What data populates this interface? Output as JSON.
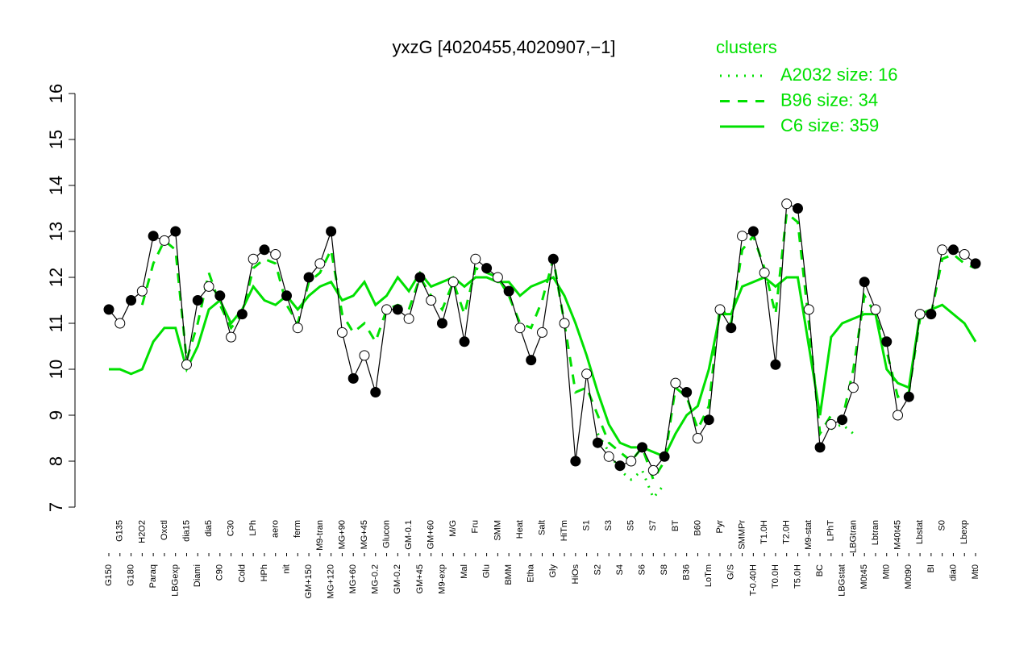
{
  "chart_data": {
    "type": "line",
    "title": "yxzG [4020455,4020907,−1]",
    "legend_title": "clusters",
    "legend_position": "top-right",
    "point_line_color": "#000000",
    "marker_colors": [
      "#000000",
      "#ffffff"
    ],
    "categories": [
      "G150",
      "G135",
      "G180",
      "H2O2",
      "Paraq",
      "Oxctl",
      "LBGexp",
      "dia15",
      "Diami",
      "dia5",
      "C90",
      "C30",
      "Cold",
      "LPh",
      "HPh",
      "aero",
      "nit",
      "ferm",
      "GM+150",
      "M9-tran",
      "MG+120",
      "MG+90",
      "MG+60",
      "MG+45",
      "MG-0.2",
      "Glucon",
      "GM-0.2",
      "GM-0.1",
      "GM+45",
      "GM+60",
      "M9-exp",
      "M/G",
      "Mal",
      "Fru",
      "Glu",
      "SMM",
      "BMM",
      "Heat",
      "Etha",
      "Salt",
      "Gly",
      "HiTm",
      "HiOs",
      "S1",
      "S2",
      "S3",
      "S4",
      "S5",
      "S6",
      "S7",
      "S8",
      "BT",
      "B36",
      "B60",
      "LoTm",
      "Pyr",
      "G/S",
      "SMMPr",
      "T-0.40H",
      "T1.0H",
      "T0.0H",
      "T2.0H",
      "T5.0H",
      "M9-stat",
      "BC",
      "LPhT",
      "LBGstat",
      "LBGtran",
      "M0t45",
      "Lbtran",
      "Mt0",
      "M40t45",
      "M0t90",
      "Lbstat",
      "BI",
      "S0",
      "dia0",
      "Lbexp",
      "Mt0"
    ],
    "values": [
      11.3,
      11.0,
      11.5,
      11.7,
      12.9,
      12.8,
      13.0,
      10.1,
      11.5,
      11.8,
      11.6,
      10.7,
      11.2,
      12.4,
      12.6,
      12.5,
      11.6,
      10.9,
      12.0,
      12.3,
      13.0,
      10.8,
      9.8,
      10.3,
      9.5,
      11.3,
      11.3,
      11.1,
      12.0,
      11.5,
      11.0,
      11.9,
      10.6,
      12.4,
      12.2,
      12.0,
      11.7,
      10.9,
      10.2,
      10.8,
      12.4,
      11.0,
      8.0,
      9.9,
      8.4,
      8.1,
      7.9,
      8.0,
      8.3,
      7.8,
      8.1,
      9.7,
      9.5,
      8.5,
      8.9,
      11.3,
      10.9,
      12.9,
      13.0,
      12.1,
      10.1,
      13.6,
      13.5,
      11.3,
      8.3,
      8.8,
      8.9,
      9.6,
      11.9,
      11.3,
      10.6,
      9.0,
      9.4,
      11.2,
      11.2,
      12.6,
      12.6,
      12.5,
      12.3
    ],
    "series": [
      {
        "name": "A2032 size: 16",
        "color": "#00e000",
        "style": "dotted",
        "values": [
          null,
          null,
          null,
          null,
          null,
          null,
          null,
          null,
          null,
          null,
          null,
          null,
          null,
          null,
          null,
          null,
          null,
          null,
          null,
          null,
          null,
          null,
          null,
          null,
          null,
          null,
          null,
          null,
          null,
          null,
          null,
          null,
          null,
          null,
          null,
          null,
          null,
          null,
          null,
          null,
          null,
          null,
          null,
          null,
          8.6,
          8.2,
          7.8,
          7.6,
          7.8,
          7.2,
          7.5,
          null,
          null,
          null,
          null,
          null,
          null,
          null,
          null,
          null,
          null,
          null,
          null,
          null,
          null,
          8.7,
          8.8,
          8.6,
          null,
          null,
          null,
          null,
          null,
          null,
          null,
          null,
          null,
          null,
          null
        ]
      },
      {
        "name": "B96 size: 34",
        "color": "#00e000",
        "style": "dashed",
        "values": [
          null,
          10.9,
          null,
          11.4,
          12.3,
          12.8,
          12.6,
          10.2,
          11.0,
          12.1,
          11.4,
          10.9,
          11.2,
          12.2,
          12.4,
          12.3,
          11.4,
          11.0,
          11.9,
          12.1,
          12.6,
          11.2,
          10.8,
          11.0,
          10.6,
          11.3,
          11.4,
          11.3,
          12.0,
          11.6,
          11.3,
          11.9,
          11.2,
          12.2,
          12.1,
          12.0,
          11.6,
          11.0,
          10.9,
          11.5,
          12.4,
          11.0,
          9.5,
          9.6,
          9.0,
          8.4,
          8.2,
          8.0,
          8.3,
          7.6,
          8.0,
          9.6,
          9.4,
          8.7,
          9.2,
          11.4,
          11.0,
          12.6,
          12.9,
          12.2,
          11.2,
          13.4,
          13.2,
          11.0,
          8.6,
          9.0,
          8.9,
          10.0,
          11.6,
          11.2,
          10.4,
          9.4,
          9.5,
          11.1,
          11.2,
          12.4,
          12.5,
          12.3,
          12.2
        ]
      },
      {
        "name": "C6 size: 359",
        "color": "#00e000",
        "style": "solid",
        "values": [
          10.0,
          10.0,
          9.9,
          10.0,
          10.6,
          10.9,
          10.9,
          10.0,
          10.5,
          11.3,
          11.5,
          11.0,
          11.3,
          11.8,
          11.5,
          11.4,
          11.6,
          11.3,
          11.6,
          11.8,
          11.9,
          11.5,
          11.6,
          11.9,
          11.4,
          11.6,
          12.0,
          11.7,
          12.1,
          11.8,
          11.9,
          12.0,
          11.8,
          12.0,
          12.0,
          11.9,
          11.9,
          11.6,
          11.8,
          11.9,
          12.0,
          11.6,
          11.0,
          10.3,
          9.5,
          8.8,
          8.4,
          8.3,
          8.3,
          8.2,
          8.1,
          8.6,
          9.0,
          9.2,
          10.0,
          11.2,
          11.2,
          11.8,
          11.9,
          12.0,
          11.8,
          12.0,
          12.0,
          10.5,
          9.0,
          10.7,
          11.0,
          11.1,
          11.2,
          11.2,
          10.0,
          9.7,
          9.6,
          11.2,
          11.3,
          11.4,
          11.2,
          11.0,
          10.6
        ]
      }
    ],
    "ylim": [
      7,
      16
    ],
    "yticks": [
      7,
      8,
      9,
      10,
      11,
      12,
      13,
      14,
      15,
      16
    ]
  }
}
